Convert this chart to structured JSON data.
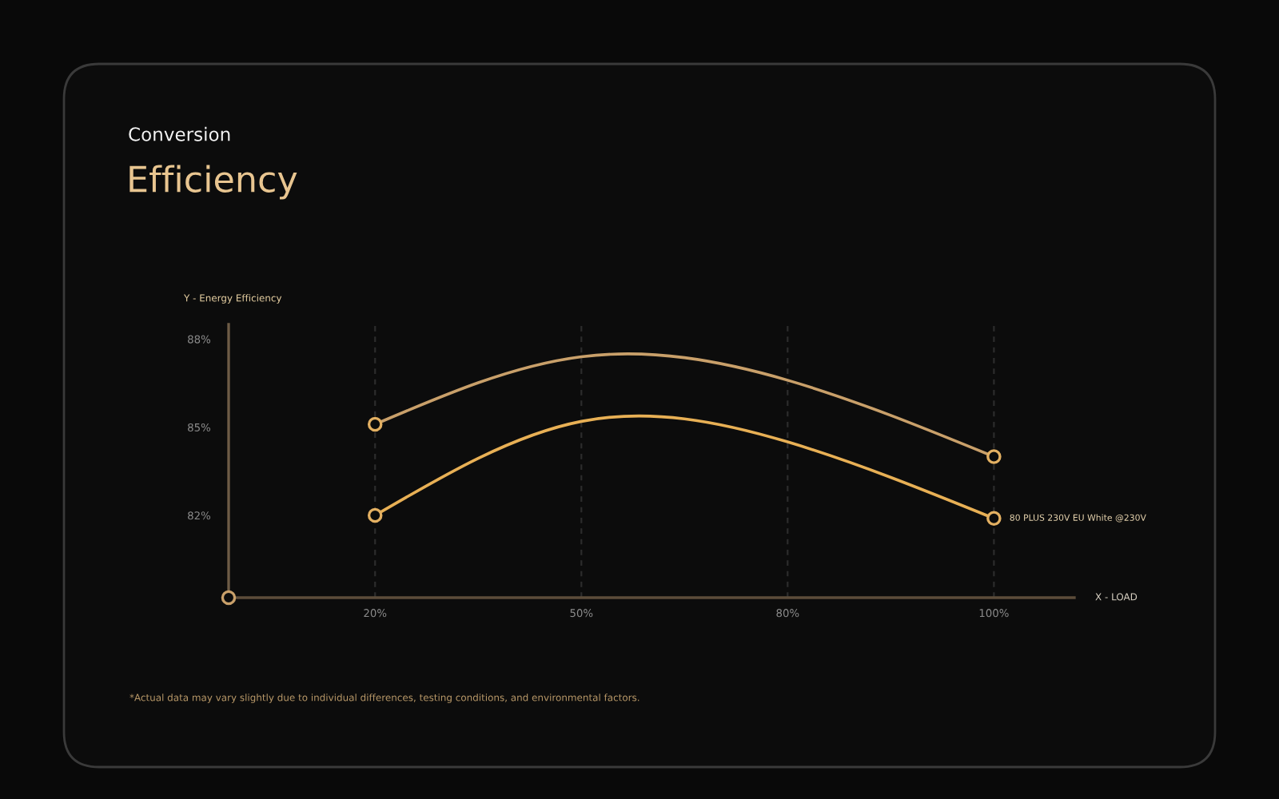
{
  "chart_data": {
    "type": "line",
    "subtitle": "Conversion",
    "title": "Efficiency",
    "xlabel": "X - LOAD",
    "ylabel": "Y - Energy Efficiency",
    "categories": [
      "20%",
      "50%",
      "80%",
      "100%"
    ],
    "series": [
      {
        "color": "#c9a06a",
        "values": [
          85.1,
          87.4,
          86.6,
          84.0
        ]
      },
      {
        "name": "80 PLUS 230V EU White @230V",
        "color": "#e8b055",
        "values": [
          82.0,
          85.2,
          84.5,
          81.9
        ]
      },
      {
        "type": "scatter",
        "x": [
          "20%",
          "100%"
        ],
        "color": "#e3b062",
        "marker": "circle",
        "values": [
          85.1,
          84.0
        ]
      },
      {
        "type": "scatter",
        "x": [
          "20%",
          "100%"
        ],
        "color": "#e3b062",
        "marker": "circle",
        "values": [
          82.0,
          81.9
        ]
      }
    ],
    "ylim": [
      79.2,
      88.5
    ],
    "yticks": [
      {
        "value": 82,
        "label": "82%"
      },
      {
        "value": 85,
        "label": "85%"
      },
      {
        "value": 88,
        "label": "88%"
      }
    ],
    "grid": "x",
    "annotations": [
      "*Actual data may vary slightly due to individual differences, testing conditions, and environmental factors."
    ]
  }
}
